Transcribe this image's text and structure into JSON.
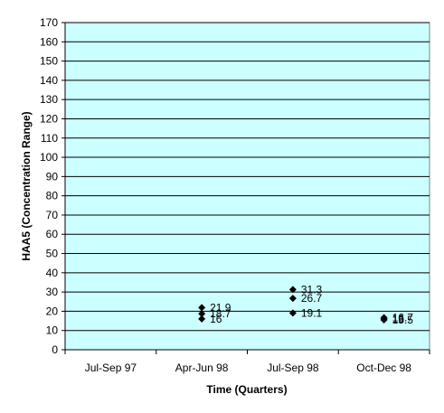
{
  "chart_data": {
    "type": "scatter",
    "title": "",
    "xlabel": "Time (Quarters)",
    "ylabel": "HAA5 (Concentration Range)",
    "categories": [
      "Jul-Sep 97",
      "Apr-Jun 98",
      "Jul-Sep 98",
      "Oct-Dec 98"
    ],
    "ylim": [
      0,
      170
    ],
    "yticks": [
      0,
      10,
      20,
      30,
      40,
      50,
      60,
      70,
      80,
      90,
      100,
      110,
      120,
      130,
      140,
      150,
      160,
      170
    ],
    "grid": "horizontal",
    "legend": "none",
    "series": [
      {
        "marker": "diamond",
        "points": [
          {
            "category": "Apr-Jun 98",
            "y": 21.9,
            "label": "21.9"
          },
          {
            "category": "Apr-Jun 98",
            "y": 18.7,
            "label": "18.7"
          },
          {
            "category": "Apr-Jun 98",
            "y": 16,
            "label": "16"
          },
          {
            "category": "Jul-Sep 98",
            "y": 31.3,
            "label": "31.3"
          },
          {
            "category": "Jul-Sep 98",
            "y": 26.7,
            "label": "26.7"
          },
          {
            "category": "Jul-Sep 98",
            "y": 19.1,
            "label": "19.1"
          },
          {
            "category": "Oct-Dec 98",
            "y": 16.7,
            "label": "16.7"
          },
          {
            "category": "Oct-Dec 98",
            "y": 16,
            "label": "16"
          },
          {
            "category": "Oct-Dec 98",
            "y": 15.5,
            "label": "15.5"
          }
        ]
      }
    ],
    "colors": {
      "plot_background": "#ccffff",
      "gridline": "#000000",
      "marker": "#000000"
    }
  }
}
